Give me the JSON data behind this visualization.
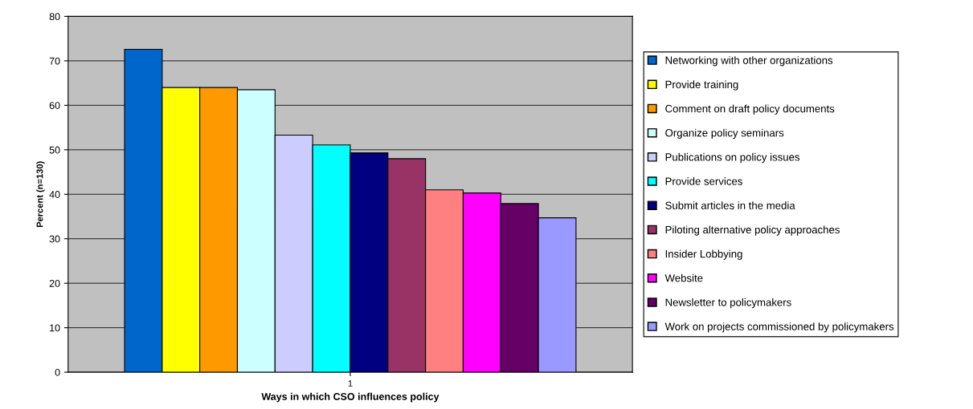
{
  "chart_data": {
    "type": "bar",
    "xlabel": "Ways in which CSO influences policy",
    "ylabel": "Percent (n=130)",
    "categories": [
      "1"
    ],
    "series": [
      {
        "name": "Networking with other organizations",
        "color": "#0066cc",
        "values": [
          72.6
        ]
      },
      {
        "name": "Provide training",
        "color": "#ffff00",
        "values": [
          64
        ]
      },
      {
        "name": "Comment on draft policy documents",
        "color": "#ff9900",
        "values": [
          64
        ]
      },
      {
        "name": "Organize policy seminars",
        "color": "#ccffff",
        "values": [
          63.5
        ]
      },
      {
        "name": "Publications on policy issues",
        "color": "#ccccff",
        "values": [
          53.3
        ]
      },
      {
        "name": "Provide services",
        "color": "#00ffff",
        "values": [
          51.1
        ]
      },
      {
        "name": "Submit articles in the media",
        "color": "#000080",
        "values": [
          49.3
        ]
      },
      {
        "name": "Piloting alternative policy approaches",
        "color": "#993366",
        "values": [
          48
        ]
      },
      {
        "name": "Insider Lobbying",
        "color": "#ff8080",
        "values": [
          41
        ]
      },
      {
        "name": "Website",
        "color": "#ff00ff",
        "values": [
          40.3
        ]
      },
      {
        "name": "Newsletter to policymakers",
        "color": "#660066",
        "values": [
          37.9
        ]
      },
      {
        "name": "Work on projects commissioned by policymakers",
        "color": "#9999ff",
        "values": [
          34.7
        ]
      }
    ],
    "ylim": [
      0,
      80
    ],
    "yticks": [
      0,
      10,
      20,
      30,
      40,
      50,
      60,
      70,
      80
    ],
    "grid": "y",
    "legend": "right"
  }
}
